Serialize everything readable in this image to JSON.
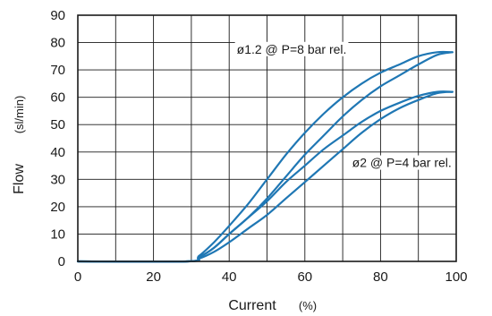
{
  "chart_data": {
    "type": "line",
    "xlabel": "Current",
    "xunit": "(%)",
    "ylabel": "Flow",
    "yunit": "(sl/min)",
    "xlim": [
      0,
      100
    ],
    "ylim": [
      0,
      90
    ],
    "xticks": [
      0,
      20,
      40,
      60,
      80,
      100
    ],
    "yticks": [
      0,
      10,
      20,
      30,
      40,
      50,
      60,
      70,
      80,
      90
    ],
    "grid": true,
    "line_color": "#1f77b4",
    "series": [
      {
        "x": [
          0,
          29,
          32,
          36,
          40,
          45,
          50,
          55,
          60,
          65,
          70,
          75,
          80,
          85,
          90,
          95,
          99
        ],
        "y": [
          0,
          0,
          2,
          7,
          13,
          21,
          30,
          39,
          47,
          54,
          60,
          65,
          69,
          72,
          75,
          76.5,
          76.5
        ]
      },
      {
        "x": [
          0,
          29,
          32,
          36,
          40,
          45,
          50,
          55,
          60,
          65,
          70,
          75,
          80,
          85,
          90,
          95,
          99
        ],
        "y": [
          0,
          0,
          1.5,
          5,
          10,
          16,
          23,
          31,
          39,
          46,
          53,
          59,
          64,
          68,
          72,
          75.5,
          76.5
        ]
      },
      {
        "x": [
          0,
          29,
          32,
          36,
          40,
          45,
          50,
          55,
          60,
          65,
          70,
          75,
          80,
          85,
          90,
          95,
          99
        ],
        "y": [
          0,
          0,
          1.5,
          5,
          10,
          16,
          22,
          29,
          35,
          41,
          46,
          51,
          55,
          58,
          60.5,
          62,
          62
        ]
      },
      {
        "x": [
          0,
          29,
          32,
          36,
          40,
          45,
          50,
          55,
          60,
          65,
          70,
          75,
          80,
          85,
          90,
          95,
          99
        ],
        "y": [
          0,
          0,
          1,
          3.5,
          7,
          12,
          17,
          23,
          29,
          35,
          41,
          47,
          52,
          56,
          59,
          61.5,
          62
        ]
      }
    ],
    "annotations": [
      {
        "text": "ø1.2 @ P=8 bar rel.",
        "x": 42,
        "y": 76
      },
      {
        "text": "ø2 @ P=4 bar rel.",
        "x": 72.5,
        "y": 34.5
      }
    ]
  }
}
